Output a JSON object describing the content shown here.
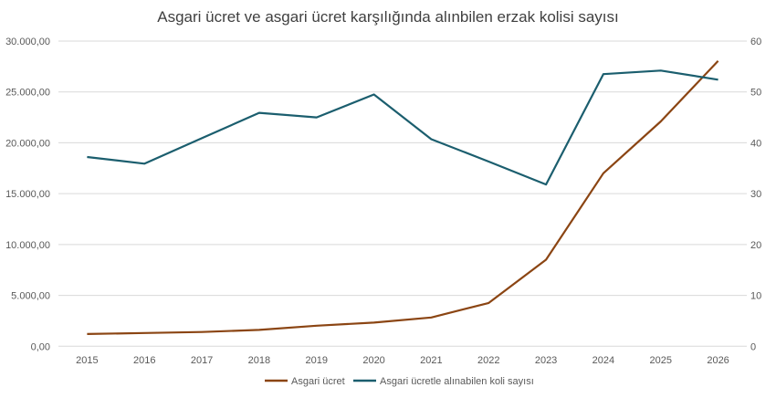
{
  "chart_data": {
    "type": "line",
    "title": "Asgari ücret ve asgari ücret karşılığında alınbilen erzak kolisi sayısı",
    "categories": [
      "2015",
      "2016",
      "2017",
      "2018",
      "2019",
      "2020",
      "2021",
      "2022",
      "2023",
      "2024",
      "2025",
      "2026"
    ],
    "series": [
      {
        "name": "Asgari ücret",
        "axis": "left",
        "color": "#8B4513",
        "values": [
          1200,
          1300,
          1404,
          1603,
          2020,
          2324,
          2826,
          4253,
          8507,
          17002,
          22104,
          28050
        ]
      },
      {
        "name": "Asgari ücretle alınabilen koli sayısı",
        "axis": "right",
        "color": "#1B5E6E",
        "values": [
          37.2,
          35.9,
          40.9,
          45.9,
          45.0,
          49.5,
          40.7,
          36.3,
          31.8,
          53.5,
          54.2,
          52.4
        ]
      }
    ],
    "left_axis": {
      "ylim": [
        0,
        30000
      ],
      "ticks": [
        "0,00",
        "5.000,00",
        "10.000,00",
        "15.000,00",
        "20.000,00",
        "25.000,00",
        "30.000,00"
      ]
    },
    "right_axis": {
      "ylim": [
        0,
        60
      ],
      "ticks": [
        "0",
        "10",
        "20",
        "30",
        "40",
        "50",
        "60"
      ]
    },
    "grid": true,
    "legend": "bottom"
  }
}
